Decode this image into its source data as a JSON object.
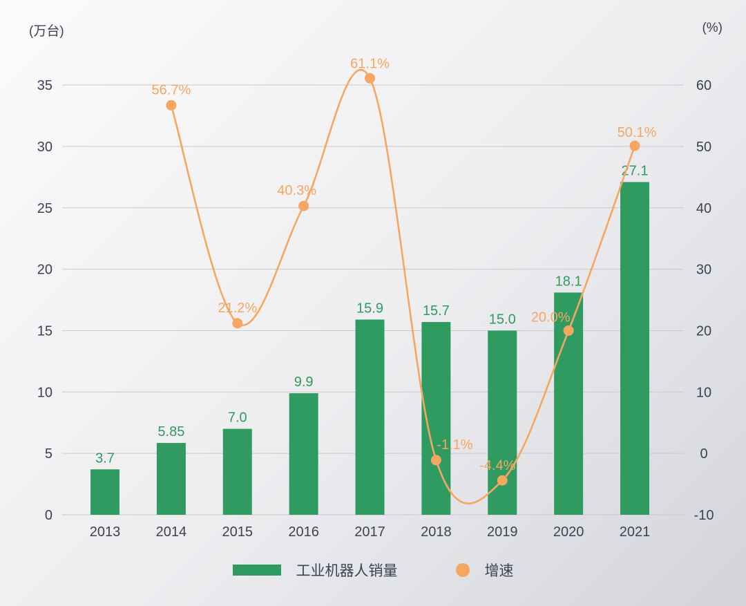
{
  "chart_data": {
    "type": "bar",
    "subtype": "combo-bar-line-dual-axis",
    "title": "",
    "categories": [
      "2013",
      "2014",
      "2015",
      "2016",
      "2017",
      "2018",
      "2019",
      "2020",
      "2021"
    ],
    "series": [
      {
        "name": "工业机器人销量",
        "type": "bar",
        "axis": "left",
        "values": [
          3.7,
          5.85,
          7.0,
          9.9,
          15.9,
          15.7,
          15.0,
          18.1,
          27.1
        ],
        "labels": [
          "3.7",
          "5.85",
          "7.0",
          "9.9",
          "15.9",
          "15.7",
          "15.0",
          "18.1",
          "27.1"
        ]
      },
      {
        "name": "增速",
        "type": "line",
        "axis": "right",
        "values": [
          null,
          56.7,
          21.2,
          40.3,
          61.1,
          -1.1,
          -4.4,
          20.0,
          50.1
        ],
        "labels": [
          null,
          "56.7%",
          "21.2%",
          "40.3%",
          "61.1%",
          "-1.1%",
          "-4.4%",
          "20.0%",
          "50.1%"
        ]
      }
    ],
    "left_axis": {
      "unit_label": "(万台)",
      "min": 0,
      "max": 35,
      "ticks": [
        35,
        30,
        25,
        20,
        15,
        10,
        5,
        0
      ]
    },
    "right_axis": {
      "unit_label": "(%)",
      "min": -10,
      "max": 60,
      "ticks": [
        60,
        50,
        40,
        30,
        20,
        10,
        0,
        -10
      ]
    },
    "legend": {
      "bar_label": "工业机器人销量",
      "line_label": "增速"
    },
    "grid": true,
    "legend_position": "bottom",
    "colors": {
      "bar": "#2f9b60",
      "line": "#f5a761",
      "axis_text": "#3b4254",
      "gridline": "#c7c9cd",
      "background_from": "#fbfbfb",
      "background_to": "#d2d4da"
    }
  }
}
